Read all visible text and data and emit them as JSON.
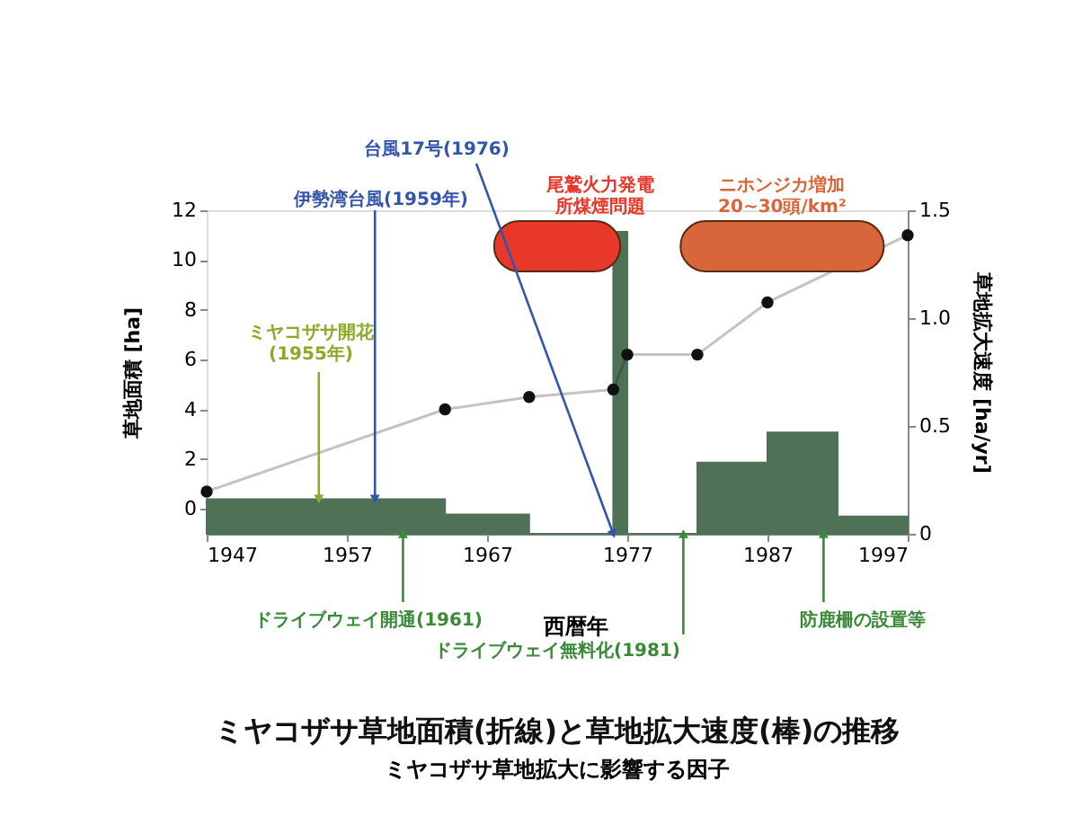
{
  "chart_data": {
    "type": "line",
    "title": "ミヤコザサ草地面積(折線)と草地拡大速度(棒)の推移",
    "subtitle": "ミヤコザサ草地拡大に影響する因子",
    "xlabel": "西暦年",
    "ylabel": "草地面積 [ha]",
    "y2label": "草地拡大速度 [ha/yr]",
    "xlim": [
      1947,
      1997
    ],
    "xticks": [
      1947,
      1957,
      1967,
      1977,
      1987,
      1997
    ],
    "ylim": [
      -1,
      12
    ],
    "yticks": [
      0,
      2,
      4,
      6,
      8,
      10,
      12
    ],
    "y2lim": [
      0,
      1.5
    ],
    "y2ticks": [
      {
        "value": 0,
        "label": "0"
      },
      0.5,
      {
        "value": 1.0,
        "label": "1.0"
      },
      1.5
    ],
    "series": [
      {
        "type": "histogram",
        "axis": "y2",
        "color": "#4f7257",
        "bins": [
          1947,
          1964,
          1970,
          1976,
          1977,
          1982,
          1987,
          1992,
          1997
        ],
        "values": [
          0.16,
          0.09,
          0,
          1.4,
          0,
          0.33,
          0.47,
          0.08
        ]
      },
      {
        "color": "#111111",
        "marker": "circle",
        "x": [
          1947,
          1964,
          1970,
          1976,
          1977,
          1982,
          1987,
          1997
        ],
        "values": [
          0.7,
          4.0,
          4.5,
          4.8,
          6.2,
          6.2,
          8.3,
          11.0
        ]
      }
    ],
    "bands": [
      {
        "axis": "x",
        "from": 1967.5,
        "to": 1976.5,
        "label": "尾鷲火力発電所煤煙問題",
        "color": "#e8382a"
      },
      {
        "axis": "x",
        "from": 1980.8,
        "to": 1995.3,
        "label": "ニホンジカ増加\n20~30頭/km²",
        "color": "#d9663a"
      }
    ],
    "annotations": [
      {
        "text": "台風17号(1976)",
        "x": 1976,
        "y": -1
      },
      {
        "text": "伊勢湾台風(1959年)",
        "x": 1959,
        "y": 0.4
      },
      {
        "text": "ミヤコザサ開花\n(1955年)",
        "x": 1955,
        "y": 0.4
      },
      {
        "text": "ドライブウェイ開通(1961)",
        "x": 1961,
        "y": -1
      },
      {
        "text": "ドライブウェイ無料化(1981)",
        "x": 1981,
        "y": -1
      },
      {
        "text": "防鹿柵の設置等",
        "x": 1991,
        "y": -1
      }
    ],
    "grid": false
  }
}
